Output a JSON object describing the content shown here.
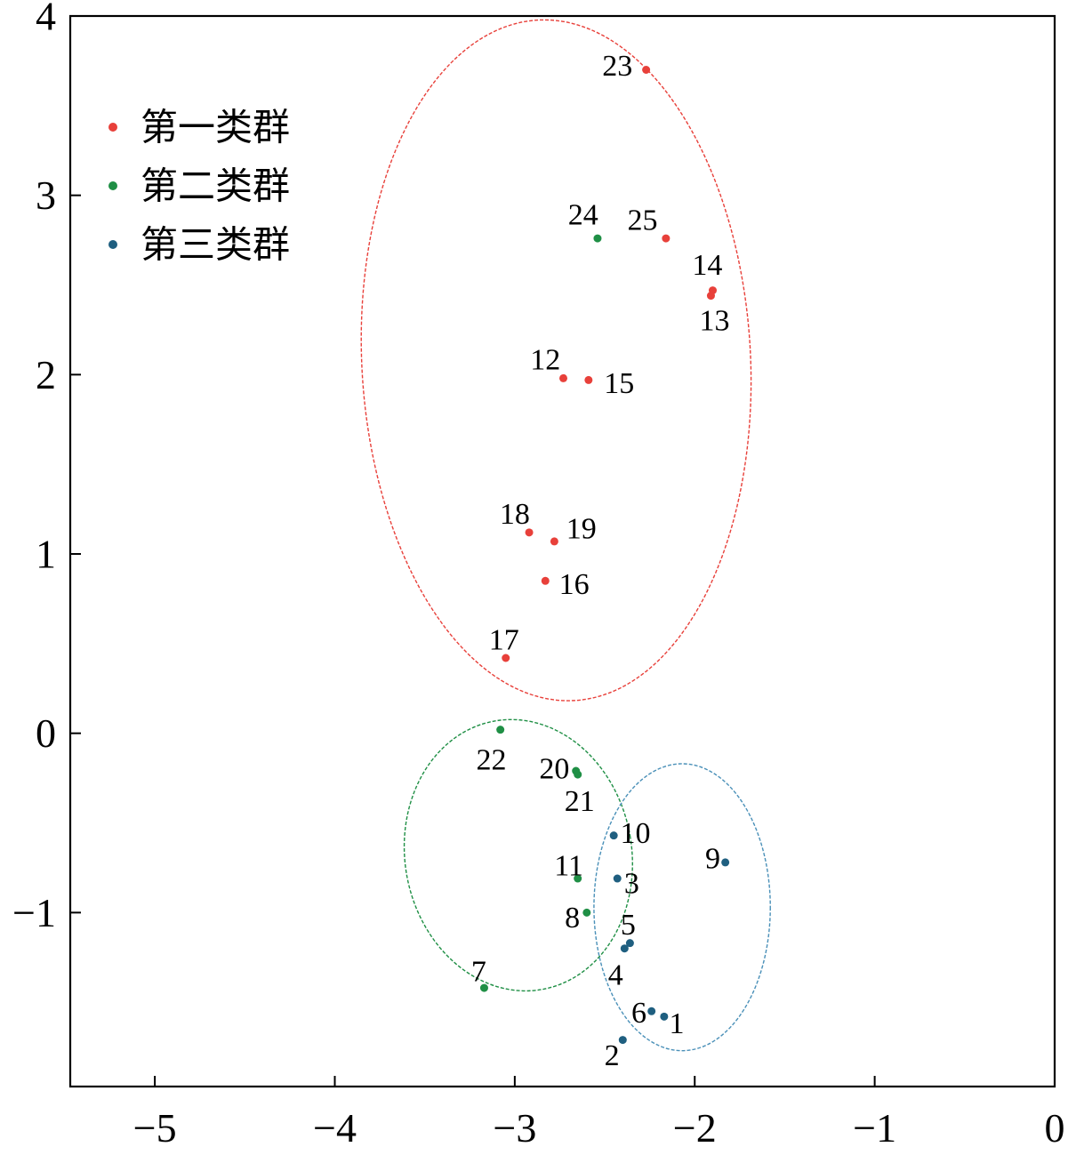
{
  "colors": {
    "cluster1": "#e8403a",
    "cluster2": "#1f8f45",
    "cluster3": "#1f5f80",
    "ellipse3": "#4a90b8"
  },
  "chart_data": {
    "type": "scatter",
    "title": "",
    "xlabel": "",
    "ylabel": "",
    "xlim": [
      -5.47,
      0
    ],
    "ylim": [
      -1.97,
      4
    ],
    "xticks": [
      -5,
      -4,
      -3,
      -2,
      -1,
      0
    ],
    "yticks": [
      -1,
      0,
      1,
      2,
      3,
      4
    ],
    "x_tick_labels": [
      "−5",
      "−4",
      "−3",
      "−2",
      "−1",
      "0"
    ],
    "y_tick_labels": [
      "−1",
      "0",
      "1",
      "2",
      "3",
      "4"
    ],
    "grid": false,
    "legend_position": "top-left",
    "series": [
      {
        "name": "第一类群",
        "color_key": "cluster1",
        "points": [
          {
            "label": "23",
            "x": -2.27,
            "y": 3.7,
            "lx": -2.43,
            "ly": 3.72
          },
          {
            "label": "25",
            "x": -2.16,
            "y": 2.76,
            "lx": -2.29,
            "ly": 2.86
          },
          {
            "label": "14",
            "x": -1.9,
            "y": 2.47,
            "lx": -1.93,
            "ly": 2.61
          },
          {
            "label": "13",
            "x": -1.91,
            "y": 2.44,
            "lx": -1.89,
            "ly": 2.3
          },
          {
            "label": "12",
            "x": -2.73,
            "y": 1.98,
            "lx": -2.83,
            "ly": 2.08
          },
          {
            "label": "15",
            "x": -2.59,
            "y": 1.97,
            "lx": -2.42,
            "ly": 1.95
          },
          {
            "label": "18",
            "x": -2.92,
            "y": 1.12,
            "lx": -3.0,
            "ly": 1.22
          },
          {
            "label": "19",
            "x": -2.78,
            "y": 1.07,
            "lx": -2.63,
            "ly": 1.14
          },
          {
            "label": "16",
            "x": -2.83,
            "y": 0.85,
            "lx": -2.67,
            "ly": 0.83
          },
          {
            "label": "17",
            "x": -3.05,
            "y": 0.42,
            "lx": -3.06,
            "ly": 0.52
          }
        ]
      },
      {
        "name": "第二类群",
        "color_key": "cluster2",
        "points": [
          {
            "label": "24",
            "x": -2.54,
            "y": 2.76,
            "lx": -2.62,
            "ly": 2.89
          },
          {
            "label": "22",
            "x": -3.08,
            "y": 0.02,
            "lx": -3.13,
            "ly": -0.15
          },
          {
            "label": "20",
            "x": -2.66,
            "y": -0.21,
            "lx": -2.78,
            "ly": -0.2
          },
          {
            "label": "21",
            "x": -2.65,
            "y": -0.23,
            "lx": -2.64,
            "ly": -0.38
          },
          {
            "label": "11",
            "x": -2.65,
            "y": -0.81,
            "lx": -2.7,
            "ly": -0.74
          },
          {
            "label": "8",
            "x": -2.6,
            "y": -1.0,
            "lx": -2.68,
            "ly": -1.03
          },
          {
            "label": "7",
            "x": -3.17,
            "y": -1.42,
            "lx": -3.2,
            "ly": -1.33
          }
        ]
      },
      {
        "name": "第三类群",
        "color_key": "cluster3",
        "points": [
          {
            "label": "10",
            "x": -2.45,
            "y": -0.57,
            "lx": -2.33,
            "ly": -0.56
          },
          {
            "label": "9",
            "x": -1.83,
            "y": -0.72,
            "lx": -1.9,
            "ly": -0.7
          },
          {
            "label": "3",
            "x": -2.43,
            "y": -0.81,
            "lx": -2.35,
            "ly": -0.84
          },
          {
            "label": "5",
            "x": -2.36,
            "y": -1.17,
            "lx": -2.37,
            "ly": -1.07
          },
          {
            "label": "4",
            "x": -2.39,
            "y": -1.2,
            "lx": -2.44,
            "ly": -1.35
          },
          {
            "label": "6",
            "x": -2.24,
            "y": -1.55,
            "lx": -2.31,
            "ly": -1.56
          },
          {
            "label": "1",
            "x": -2.17,
            "y": -1.58,
            "lx": -2.1,
            "ly": -1.62
          },
          {
            "label": "2",
            "x": -2.4,
            "y": -1.71,
            "lx": -2.46,
            "ly": -1.8
          }
        ]
      }
    ],
    "ellipses": [
      {
        "color_key": "cluster1",
        "cx": -2.77,
        "cy": 2.08,
        "rx": 1.08,
        "ry": 1.9,
        "angle": -3
      },
      {
        "color_key": "cluster2",
        "cx": -2.98,
        "cy": -0.68,
        "rx": 0.63,
        "ry": 0.76,
        "angle": -10
      },
      {
        "color_key": "ellipse3",
        "cx": -2.07,
        "cy": -0.97,
        "rx": 0.49,
        "ry": 0.8,
        "angle": 0
      }
    ]
  }
}
